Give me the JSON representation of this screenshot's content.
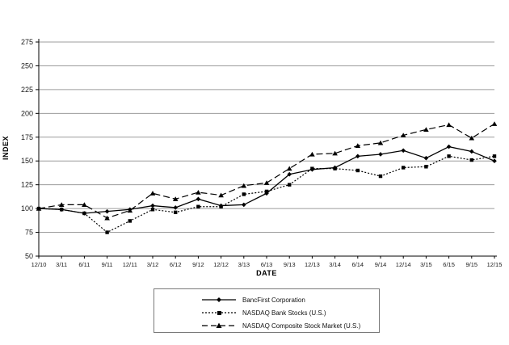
{
  "chart_data": {
    "type": "line",
    "title": "",
    "xlabel": "DATE",
    "ylabel": "INDEX",
    "ylim": [
      50,
      275
    ],
    "yticks": [
      50,
      75,
      100,
      125,
      150,
      175,
      200,
      225,
      250,
      275
    ],
    "grid": "horizontal",
    "legend_position": "bottom-center-boxed",
    "categories": [
      "12/10",
      "3/11",
      "6/11",
      "9/11",
      "12/11",
      "3/12",
      "6/12",
      "9/12",
      "12/12",
      "3/13",
      "6/13",
      "9/13",
      "12/13",
      "3/14",
      "6/14",
      "9/14",
      "12/14",
      "3/15",
      "6/15",
      "9/15",
      "12/15"
    ],
    "series": [
      {
        "name": "BancFirst Corporation",
        "line_style": "solid",
        "marker": "diamond",
        "color": "#000000",
        "values": [
          100,
          99,
          95,
          97,
          99,
          103,
          101,
          110,
          103,
          104,
          116,
          136,
          141,
          143,
          155,
          157,
          161,
          153,
          165,
          160,
          150
        ]
      },
      {
        "name": "NASDAQ Bank Stocks (U.S.)",
        "line_style": "dotted",
        "marker": "square",
        "color": "#000000",
        "values": [
          100,
          99,
          95,
          75,
          87,
          99,
          96,
          102,
          102,
          115,
          118,
          125,
          142,
          142,
          140,
          134,
          143,
          144,
          155,
          151,
          155
        ]
      },
      {
        "name": "NASDAQ Composite Stock Market (U.S.)",
        "line_style": "dashed",
        "marker": "triangle",
        "color": "#000000",
        "values": [
          100,
          104,
          104,
          90,
          98,
          116,
          110,
          117,
          114,
          124,
          127,
          142,
          157,
          158,
          166,
          169,
          177,
          183,
          188,
          174,
          189
        ]
      }
    ]
  },
  "colors": {
    "background": "#ffffff",
    "axis": "#000000",
    "grid": "#9c9c9c",
    "line": "#000000",
    "legend_border": "#7a7a7a"
  }
}
